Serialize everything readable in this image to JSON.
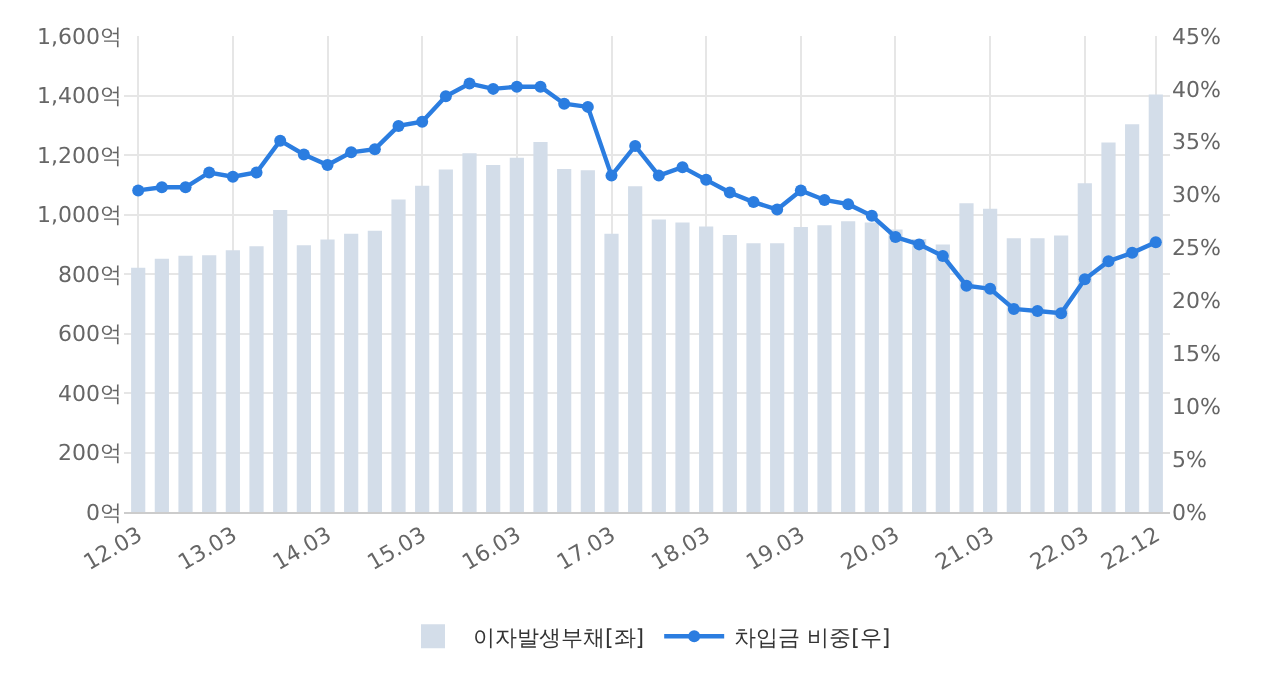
{
  "chart_data": {
    "type": "bar",
    "categories": [
      "12.03",
      null,
      null,
      null,
      "13.03",
      null,
      null,
      null,
      "14.03",
      null,
      null,
      null,
      "15.03",
      null,
      null,
      null,
      "16.03",
      null,
      null,
      null,
      "17.03",
      null,
      null,
      null,
      "18.03",
      null,
      null,
      null,
      "19.03",
      null,
      null,
      null,
      "20.03",
      null,
      null,
      null,
      "21.03",
      null,
      null,
      null,
      "22.03",
      null,
      null,
      "22.12"
    ],
    "series": [
      {
        "name": "이자발생부채[좌]",
        "color": "#d3dde9",
        "values": [
          821,
          851,
          861,
          863,
          880,
          893,
          1015,
          897,
          916,
          935,
          945,
          1050,
          1097,
          1151,
          1206,
          1166,
          1191,
          1244,
          1153,
          1149,
          935,
          1095,
          983,
          973,
          960,
          931,
          903,
          903,
          958,
          964,
          977,
          973,
          950,
          918,
          899,
          1038,
          1019,
          920,
          920,
          929,
          1105,
          1242,
          1303,
          1403
        ]
      },
      {
        "name": "차입금 비중[우]",
        "type": "line",
        "axis": "y2",
        "color": "#2b7de0",
        "values": [
          30.4,
          30.7,
          30.7,
          32.1,
          31.7,
          32.1,
          35.1,
          33.8,
          32.8,
          34.0,
          34.3,
          36.5,
          36.9,
          39.3,
          40.5,
          40.0,
          40.2,
          40.2,
          38.6,
          38.3,
          31.8,
          34.6,
          31.8,
          32.6,
          31.4,
          30.2,
          29.3,
          28.6,
          30.4,
          29.5,
          29.1,
          28.0,
          26.0,
          25.3,
          24.2,
          21.4,
          21.1,
          19.2,
          19.0,
          18.8,
          22.0,
          23.7,
          24.5,
          25.5
        ]
      }
    ],
    "ylim": [
      0,
      1600
    ],
    "yticks": [
      {
        "value": 0,
        "label": "0억"
      },
      {
        "value": 200,
        "label": "200억"
      },
      {
        "value": 400,
        "label": "400억"
      },
      {
        "value": 600,
        "label": "600억"
      },
      {
        "value": 800,
        "label": "800억"
      },
      {
        "value": 1000,
        "label": "1,000억"
      },
      {
        "value": 1200,
        "label": "1,200억"
      },
      {
        "value": 1400,
        "label": "1,400억"
      },
      {
        "value": 1600,
        "label": "1,600억"
      }
    ],
    "y2lim": [
      0,
      45
    ],
    "y2ticks": [
      {
        "value": 0,
        "label": "0%"
      },
      {
        "value": 5,
        "label": "5%"
      },
      {
        "value": 10,
        "label": "10%"
      },
      {
        "value": 15,
        "label": "15%"
      },
      {
        "value": 20,
        "label": "20%"
      },
      {
        "value": 25,
        "label": "25%"
      },
      {
        "value": 30,
        "label": "30%"
      },
      {
        "value": 35,
        "label": "35%"
      },
      {
        "value": 40,
        "label": "40%"
      },
      {
        "value": 45,
        "label": "45%"
      }
    ],
    "grid": true,
    "legend": "bottom",
    "marker": "circle",
    "line_style": "solid"
  }
}
